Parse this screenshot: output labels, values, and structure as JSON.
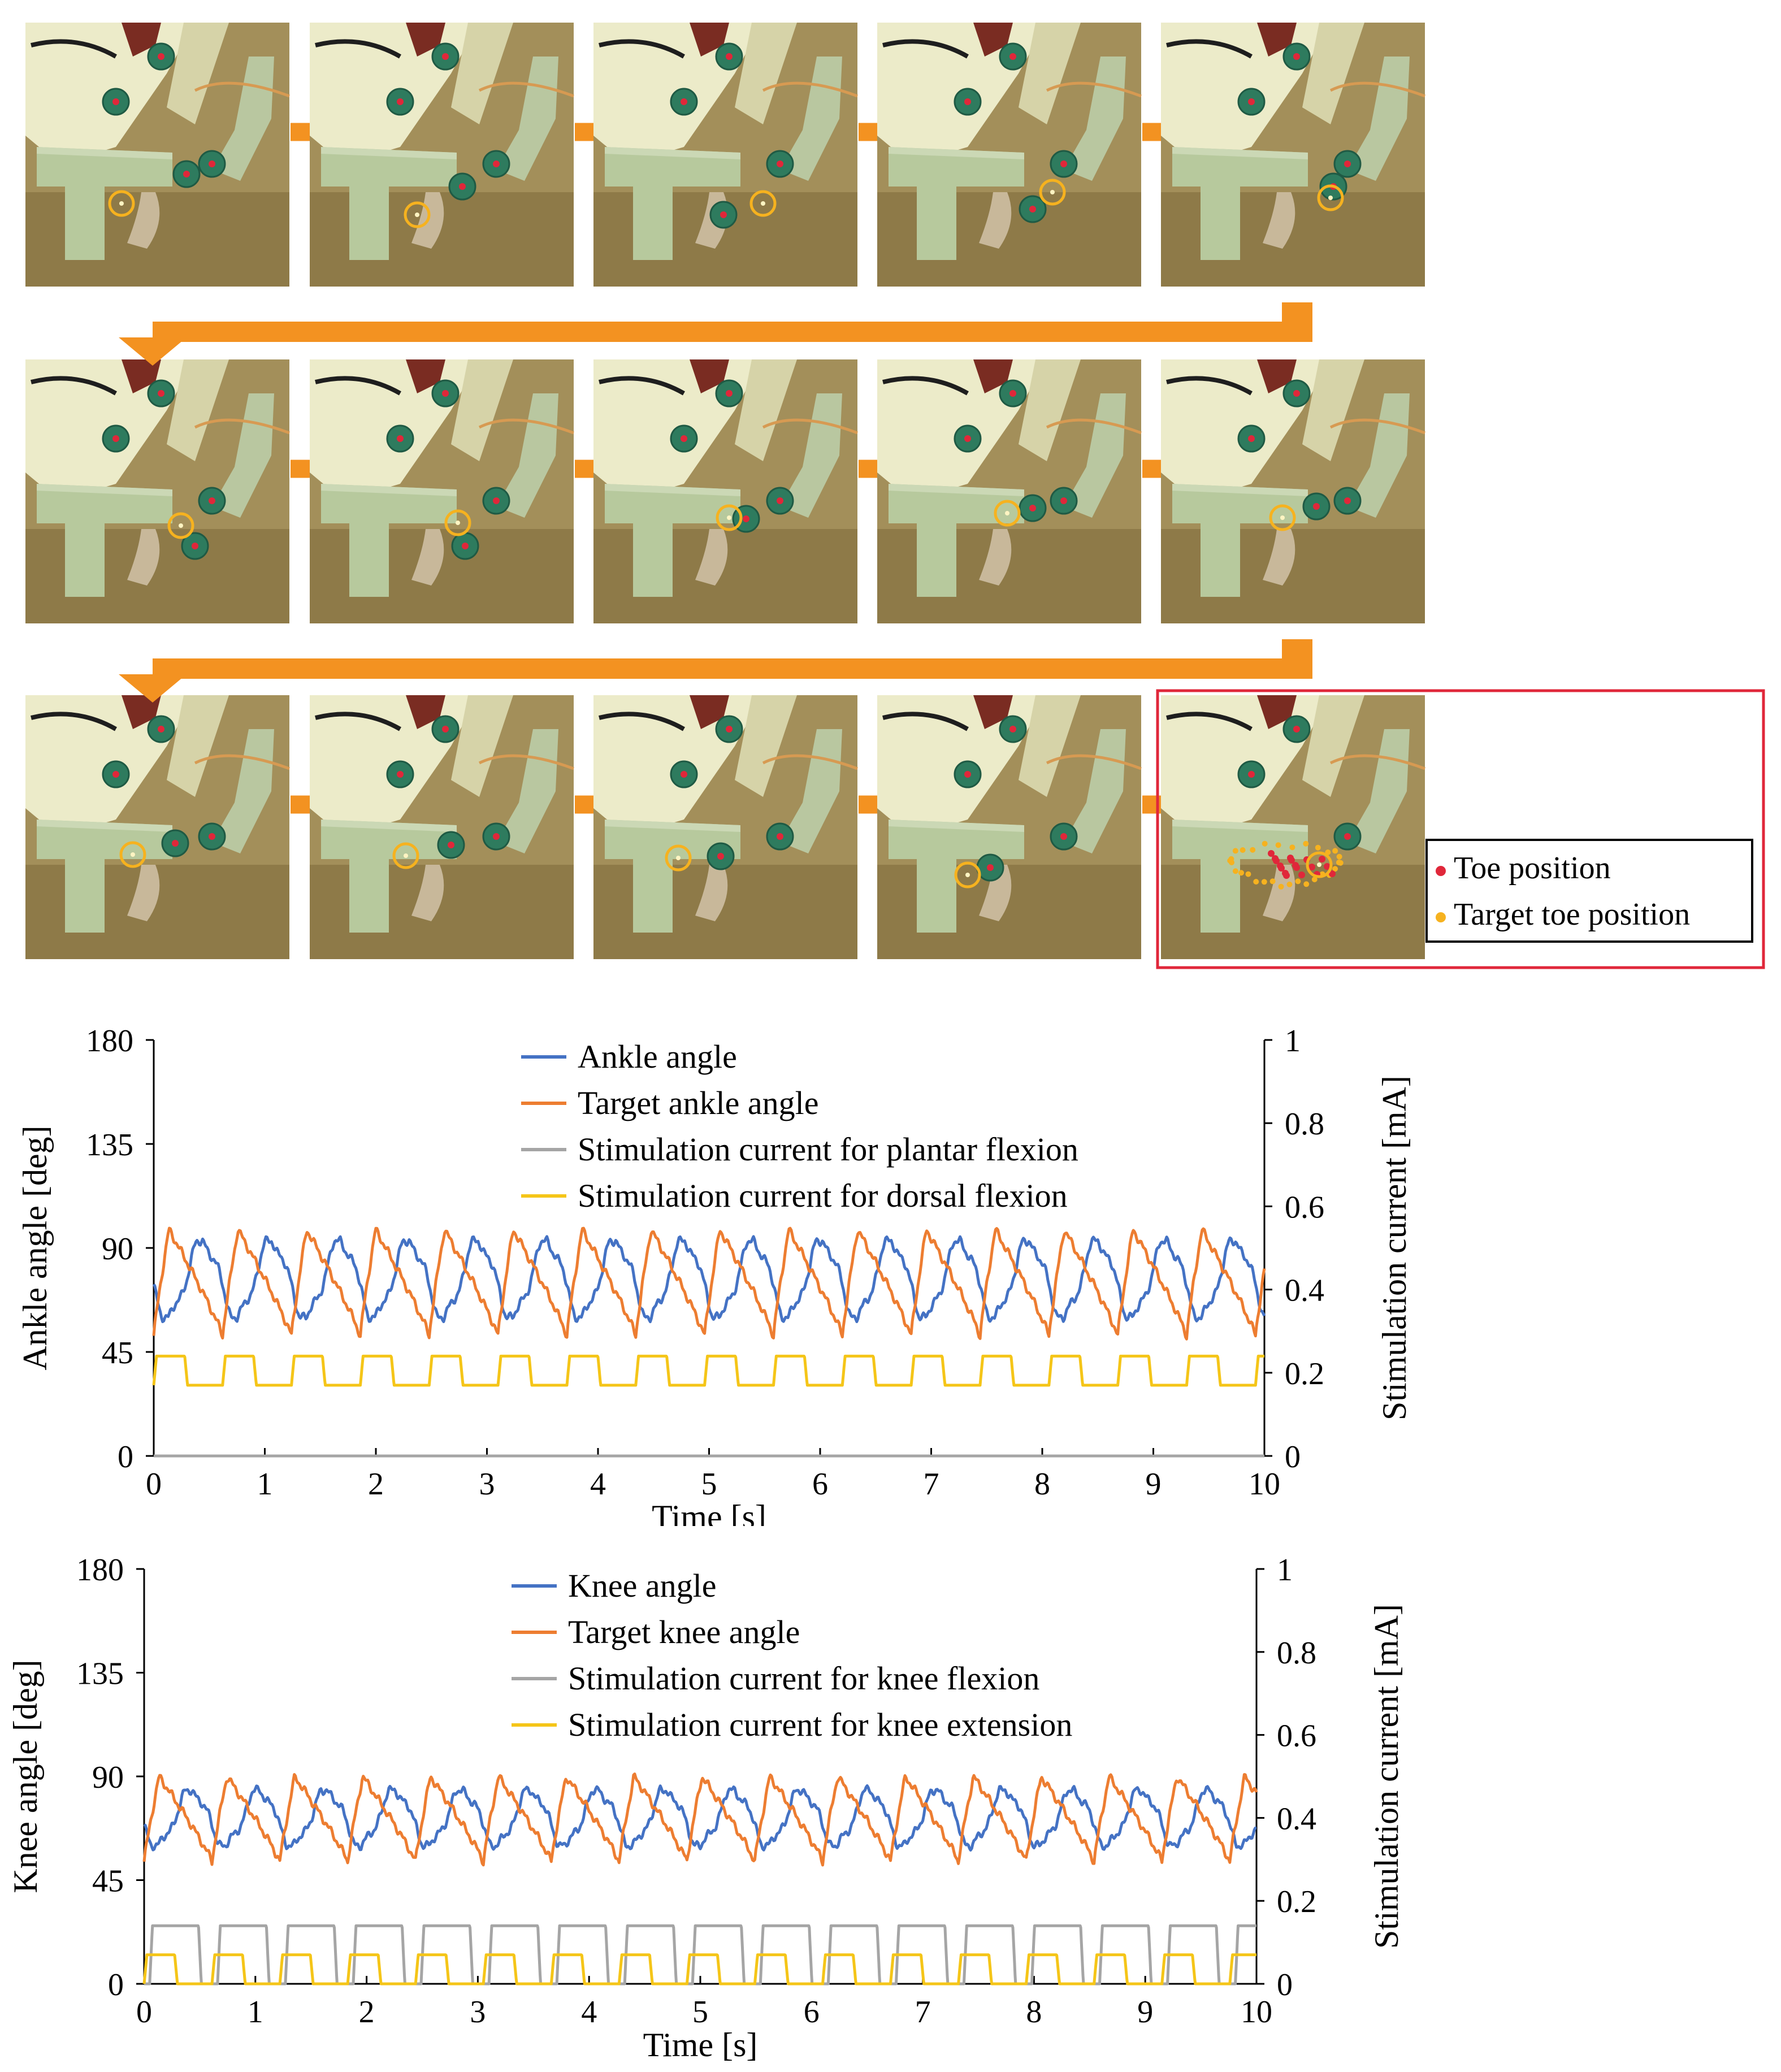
{
  "panel": {
    "legend": {
      "toe_label": "Toe position",
      "target_label": "Target toe position"
    },
    "colors": {
      "arrow": "#F39221",
      "target_circle": "#F6B21F",
      "marker": "#2E7B5E",
      "marker_dot": "#E0273A",
      "highlight_box": "#E0273A",
      "toe_dot": "#E0273A",
      "target_dot": "#F6B21F"
    }
  },
  "chart_data": [
    {
      "type": "line",
      "id": "ankle",
      "xlabel": "Time [s]",
      "ylabel": "Ankle angle [deg]",
      "y2label": "Stimulation current [mA]",
      "xlim": [
        0,
        10
      ],
      "ylim": [
        0,
        180
      ],
      "y2lim": [
        0,
        1
      ],
      "xticks": [
        "0",
        "1",
        "2",
        "3",
        "4",
        "5",
        "6",
        "7",
        "8",
        "9",
        "10"
      ],
      "yticks": [
        "0",
        "45",
        "90",
        "135",
        "180"
      ],
      "y2ticks": [
        "0",
        "0.2",
        "0.4",
        "0.6",
        "0.8",
        "1"
      ],
      "legend": [
        "Ankle angle",
        "Target ankle angle",
        "Stimulation current for plantar flexion",
        "Stimulation current for dorsal flexion"
      ],
      "period": 0.62,
      "series": [
        {
          "name": "Ankle angle",
          "axis": "left",
          "color": "#4472C4",
          "min": 60,
          "max": 93,
          "phase_delay": 0.13
        },
        {
          "name": "Target ankle angle",
          "axis": "left",
          "color": "#ED7D31",
          "min": 52,
          "max": 98,
          "phase_delay": 0.0
        },
        {
          "name": "Stimulation current for plantar flexion",
          "axis": "right",
          "color": "#A5A5A5",
          "high": 0.0,
          "low": 0.0
        },
        {
          "name": "Stimulation current for dorsal flexion",
          "axis": "right",
          "color": "#F5C518",
          "high": 0.24,
          "low": 0.17
        }
      ]
    },
    {
      "type": "line",
      "id": "knee",
      "xlabel": "Time [s]",
      "ylabel": "Knee angle [deg]",
      "y2label": "Stimulation current [mA]",
      "xlim": [
        0,
        10
      ],
      "ylim": [
        0,
        180
      ],
      "y2lim": [
        0,
        1
      ],
      "xticks": [
        "0",
        "1",
        "2",
        "3",
        "4",
        "5",
        "6",
        "7",
        "8",
        "9",
        "10"
      ],
      "yticks": [
        "0",
        "45",
        "90",
        "135",
        "180"
      ],
      "y2ticks": [
        "0",
        "0.2",
        "0.4",
        "0.6",
        "0.8",
        "1"
      ],
      "legend": [
        "Knee angle",
        "Target knee angle",
        "Stimulation current for knee flexion",
        "Stimulation current for knee extension"
      ],
      "period": 0.61,
      "series": [
        {
          "name": "Knee angle",
          "axis": "left",
          "color": "#4472C4",
          "min": 60,
          "max": 84,
          "phase_delay": 0.12
        },
        {
          "name": "Target knee angle",
          "axis": "left",
          "color": "#ED7D31",
          "min": 53,
          "max": 90,
          "phase_delay": 0.0
        },
        {
          "name": "Stimulation current for knee flexion",
          "axis": "right",
          "color": "#A5A5A5",
          "high": 0.14,
          "low": 0.0
        },
        {
          "name": "Stimulation current for knee extension",
          "axis": "right",
          "color": "#F5C518",
          "high": 0.07,
          "low": 0.0
        }
      ]
    }
  ]
}
